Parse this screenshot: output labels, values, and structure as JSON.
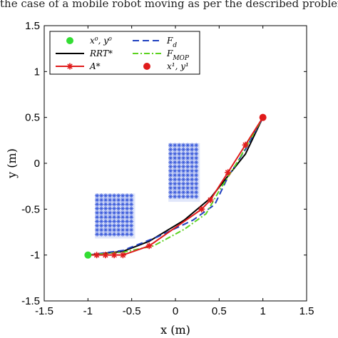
{
  "caption": "the case of a mobile robot moving as per the described problem.",
  "chart_data": {
    "type": "line",
    "xlabel": "x (m)",
    "ylabel": "y (m)",
    "xlim": [
      -1.5,
      1.5
    ],
    "ylim": [
      -1.5,
      1.5
    ],
    "xticks": [
      "-1.5",
      "-1",
      "-0.5",
      "0",
      "0.5",
      "1",
      "1.5"
    ],
    "yticks": [
      "-1.5",
      "-1",
      "-0.5",
      "0",
      "0.5",
      "1",
      "1.5"
    ],
    "grid": false,
    "legend_position": "top-left",
    "obstacles": [
      {
        "color": "#3b5bdb",
        "x": [
          -0.92,
          -0.46
        ],
        "y": [
          -0.82,
          -0.33
        ]
      },
      {
        "color": "#3b5bdb",
        "x": [
          -0.08,
          0.28
        ],
        "y": [
          -0.42,
          0.22
        ]
      }
    ],
    "series": [
      {
        "name": "x⁰, y⁰",
        "kind": "point",
        "color": "#33dd33",
        "points": [
          [
            -1.0,
            -1.0
          ]
        ]
      },
      {
        "name": "RRT*",
        "kind": "line",
        "style": "solid",
        "color": "#000000",
        "points": [
          [
            -1.0,
            -1.0
          ],
          [
            -0.6,
            -0.96
          ],
          [
            -0.3,
            -0.85
          ],
          [
            0.1,
            -0.62
          ],
          [
            0.4,
            -0.38
          ],
          [
            0.6,
            -0.14
          ],
          [
            0.8,
            0.1
          ],
          [
            1.0,
            0.5
          ]
        ]
      },
      {
        "name": "A*",
        "kind": "line-marker",
        "style": "solid",
        "color": "#e01b1b",
        "points": [
          [
            -1.0,
            -1.0
          ],
          [
            -0.9,
            -1.0
          ],
          [
            -0.8,
            -1.0
          ],
          [
            -0.7,
            -1.0
          ],
          [
            -0.6,
            -1.0
          ],
          [
            -0.3,
            -0.9
          ],
          [
            0.3,
            -0.5
          ],
          [
            0.4,
            -0.4
          ],
          [
            0.6,
            -0.1
          ],
          [
            0.8,
            0.2
          ],
          [
            1.0,
            0.5
          ]
        ]
      },
      {
        "name": "F_d",
        "kind": "line",
        "style": "dashed",
        "color": "#1f3fbf",
        "points": [
          [
            -1.0,
            -1.0
          ],
          [
            -0.6,
            -0.95
          ],
          [
            -0.2,
            -0.8
          ],
          [
            0.2,
            -0.62
          ],
          [
            0.45,
            -0.45
          ],
          [
            0.6,
            -0.15
          ],
          [
            0.8,
            0.15
          ],
          [
            1.0,
            0.5
          ]
        ]
      },
      {
        "name": "F_MOP",
        "kind": "line",
        "style": "dashdot",
        "color": "#5bd21f",
        "points": [
          [
            -1.0,
            -1.0
          ],
          [
            -0.6,
            -0.97
          ],
          [
            -0.25,
            -0.9
          ],
          [
            0.1,
            -0.72
          ],
          [
            0.35,
            -0.55
          ],
          [
            0.5,
            -0.3
          ],
          [
            0.7,
            0.0
          ],
          [
            1.0,
            0.5
          ]
        ]
      },
      {
        "name": "x¹, y¹",
        "kind": "point",
        "color": "#e01b1b",
        "points": [
          [
            1.0,
            0.5
          ]
        ]
      }
    ]
  }
}
